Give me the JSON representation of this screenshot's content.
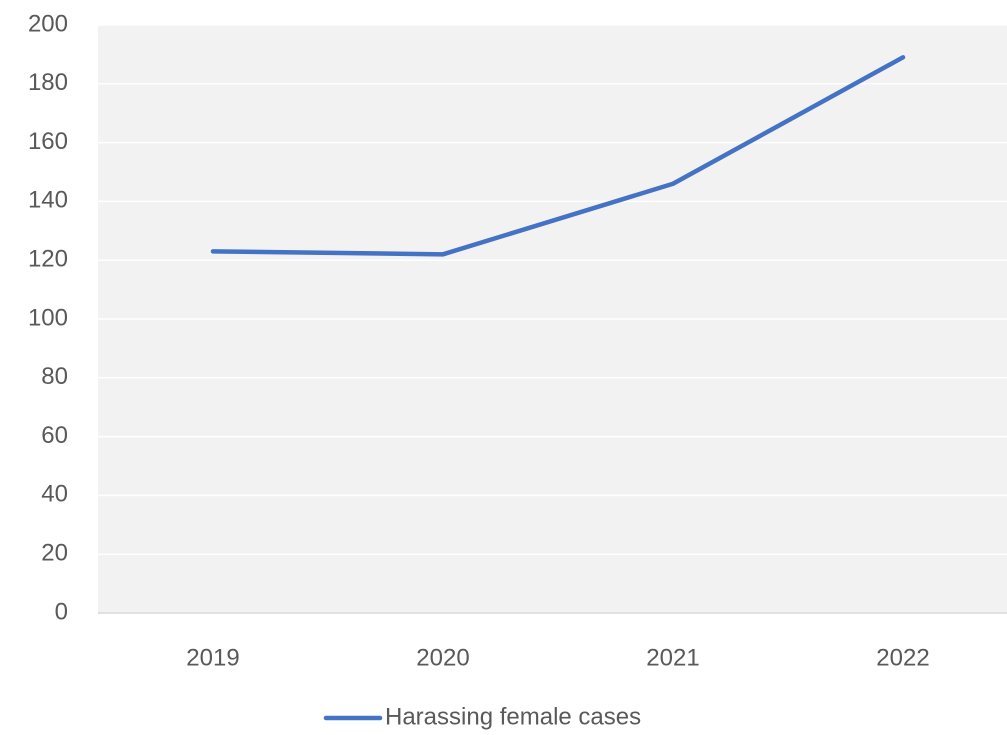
{
  "chart_data": {
    "type": "line",
    "categories": [
      "2019",
      "2020",
      "2021",
      "2022"
    ],
    "series": [
      {
        "name": "Harassing female cases",
        "color": "#4472c4",
        "values": [
          123,
          122,
          146,
          189
        ]
      }
    ],
    "ylim": [
      0,
      200
    ],
    "yticks": [
      0,
      20,
      40,
      60,
      80,
      100,
      120,
      140,
      160,
      180,
      200
    ],
    "grid": true,
    "legend": "bottom"
  }
}
